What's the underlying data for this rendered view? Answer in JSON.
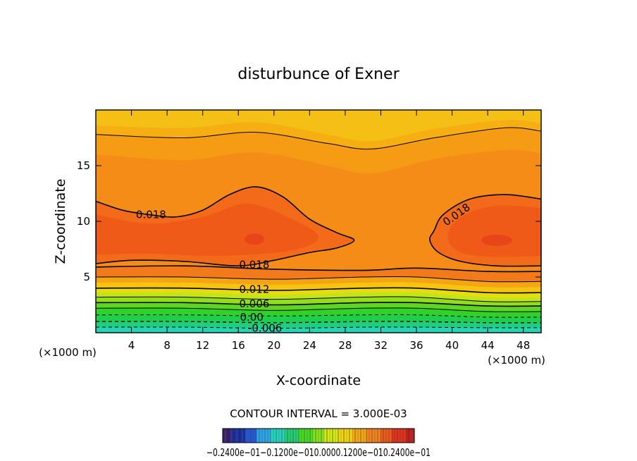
{
  "chart_data": {
    "type": "heatmap",
    "subtype": "filled-contour",
    "title": "disturbunce of Exner",
    "xlabel": "X-coordinate",
    "ylabel": "Z-coordinate",
    "x_units": "(×1000 m)",
    "y_units": "(×1000 m)",
    "xlim": [
      0,
      50
    ],
    "ylim": [
      0,
      20
    ],
    "x_ticks": [
      4,
      8,
      12,
      16,
      20,
      24,
      28,
      32,
      36,
      40,
      44,
      48
    ],
    "y_ticks": [
      5,
      10,
      15
    ],
    "contour_interval_text": "CONTOUR INTERVAL = 3.000E-03",
    "contour_labels": [
      {
        "text": "0.018",
        "x": 6.2,
        "z": 10.6
      },
      {
        "text": "0.018",
        "x": 17.8,
        "z": 6.1
      },
      {
        "text": "0.018",
        "x": 40.5,
        "z": 10.6
      },
      {
        "text": "0.012",
        "x": 17.8,
        "z": 3.9
      },
      {
        "text": "0.006",
        "x": 17.8,
        "z": 2.6
      },
      {
        "text": "0.00",
        "x": 17.5,
        "z": 1.4
      },
      {
        "text": "-0.006",
        "x": 19.0,
        "z": 0.4
      }
    ],
    "colorbar": {
      "tick_labels": "−0.2400e−01−0.1200e−010.0000.1200e−010.2400e−01",
      "min": -0.024,
      "max": 0.024,
      "colors": [
        "#3a1e6e",
        "#1a2fa0",
        "#2258d8",
        "#2aa6e8",
        "#24d4c0",
        "#22d070",
        "#44dd22",
        "#88e41a",
        "#d4ec10",
        "#f5d50e",
        "#f7a812",
        "#f5841a",
        "#ef5a18",
        "#e4321a",
        "#c41e1c"
      ]
    },
    "grid": false
  }
}
